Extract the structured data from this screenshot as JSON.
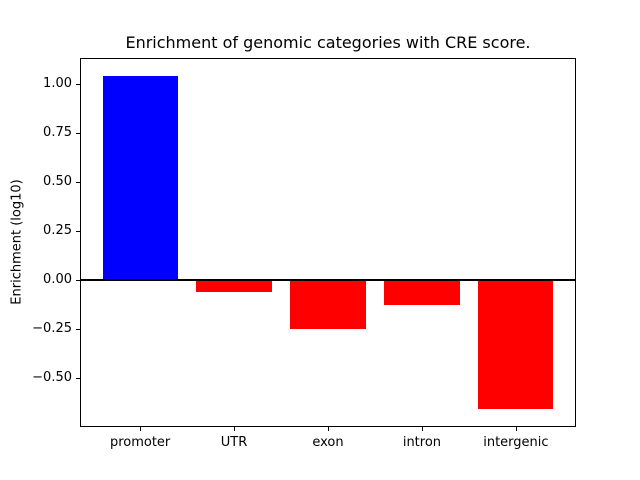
{
  "chart_data": {
    "type": "bar",
    "title": "Enrichment of genomic categories with CRE score.",
    "ylabel": "Enrichment (log10)",
    "xlabel": "",
    "categories": [
      "promoter",
      "UTR",
      "exon",
      "intron",
      "intergenic"
    ],
    "values": [
      1.04,
      -0.06,
      -0.25,
      -0.13,
      -0.66
    ],
    "bar_colors": [
      "#0000ff",
      "#ff0000",
      "#ff0000",
      "#ff0000",
      "#ff0000"
    ],
    "positive_color": "#0000ff",
    "negative_color": "#ff0000",
    "ylim": [
      -0.75,
      1.13
    ],
    "xlim": [
      -0.64,
      4.64
    ],
    "bar_width": 0.8,
    "yticks": [
      1.0,
      0.75,
      0.5,
      0.25,
      0.0,
      -0.25,
      -0.5
    ],
    "ytick_labels": [
      "1.00",
      "0.75",
      "0.50",
      "0.25",
      "0.00",
      "−0.25",
      "−0.50"
    ],
    "grid": false,
    "legend": null,
    "zero_line": true,
    "background": "#ffffff",
    "axis_color": "#000000"
  }
}
